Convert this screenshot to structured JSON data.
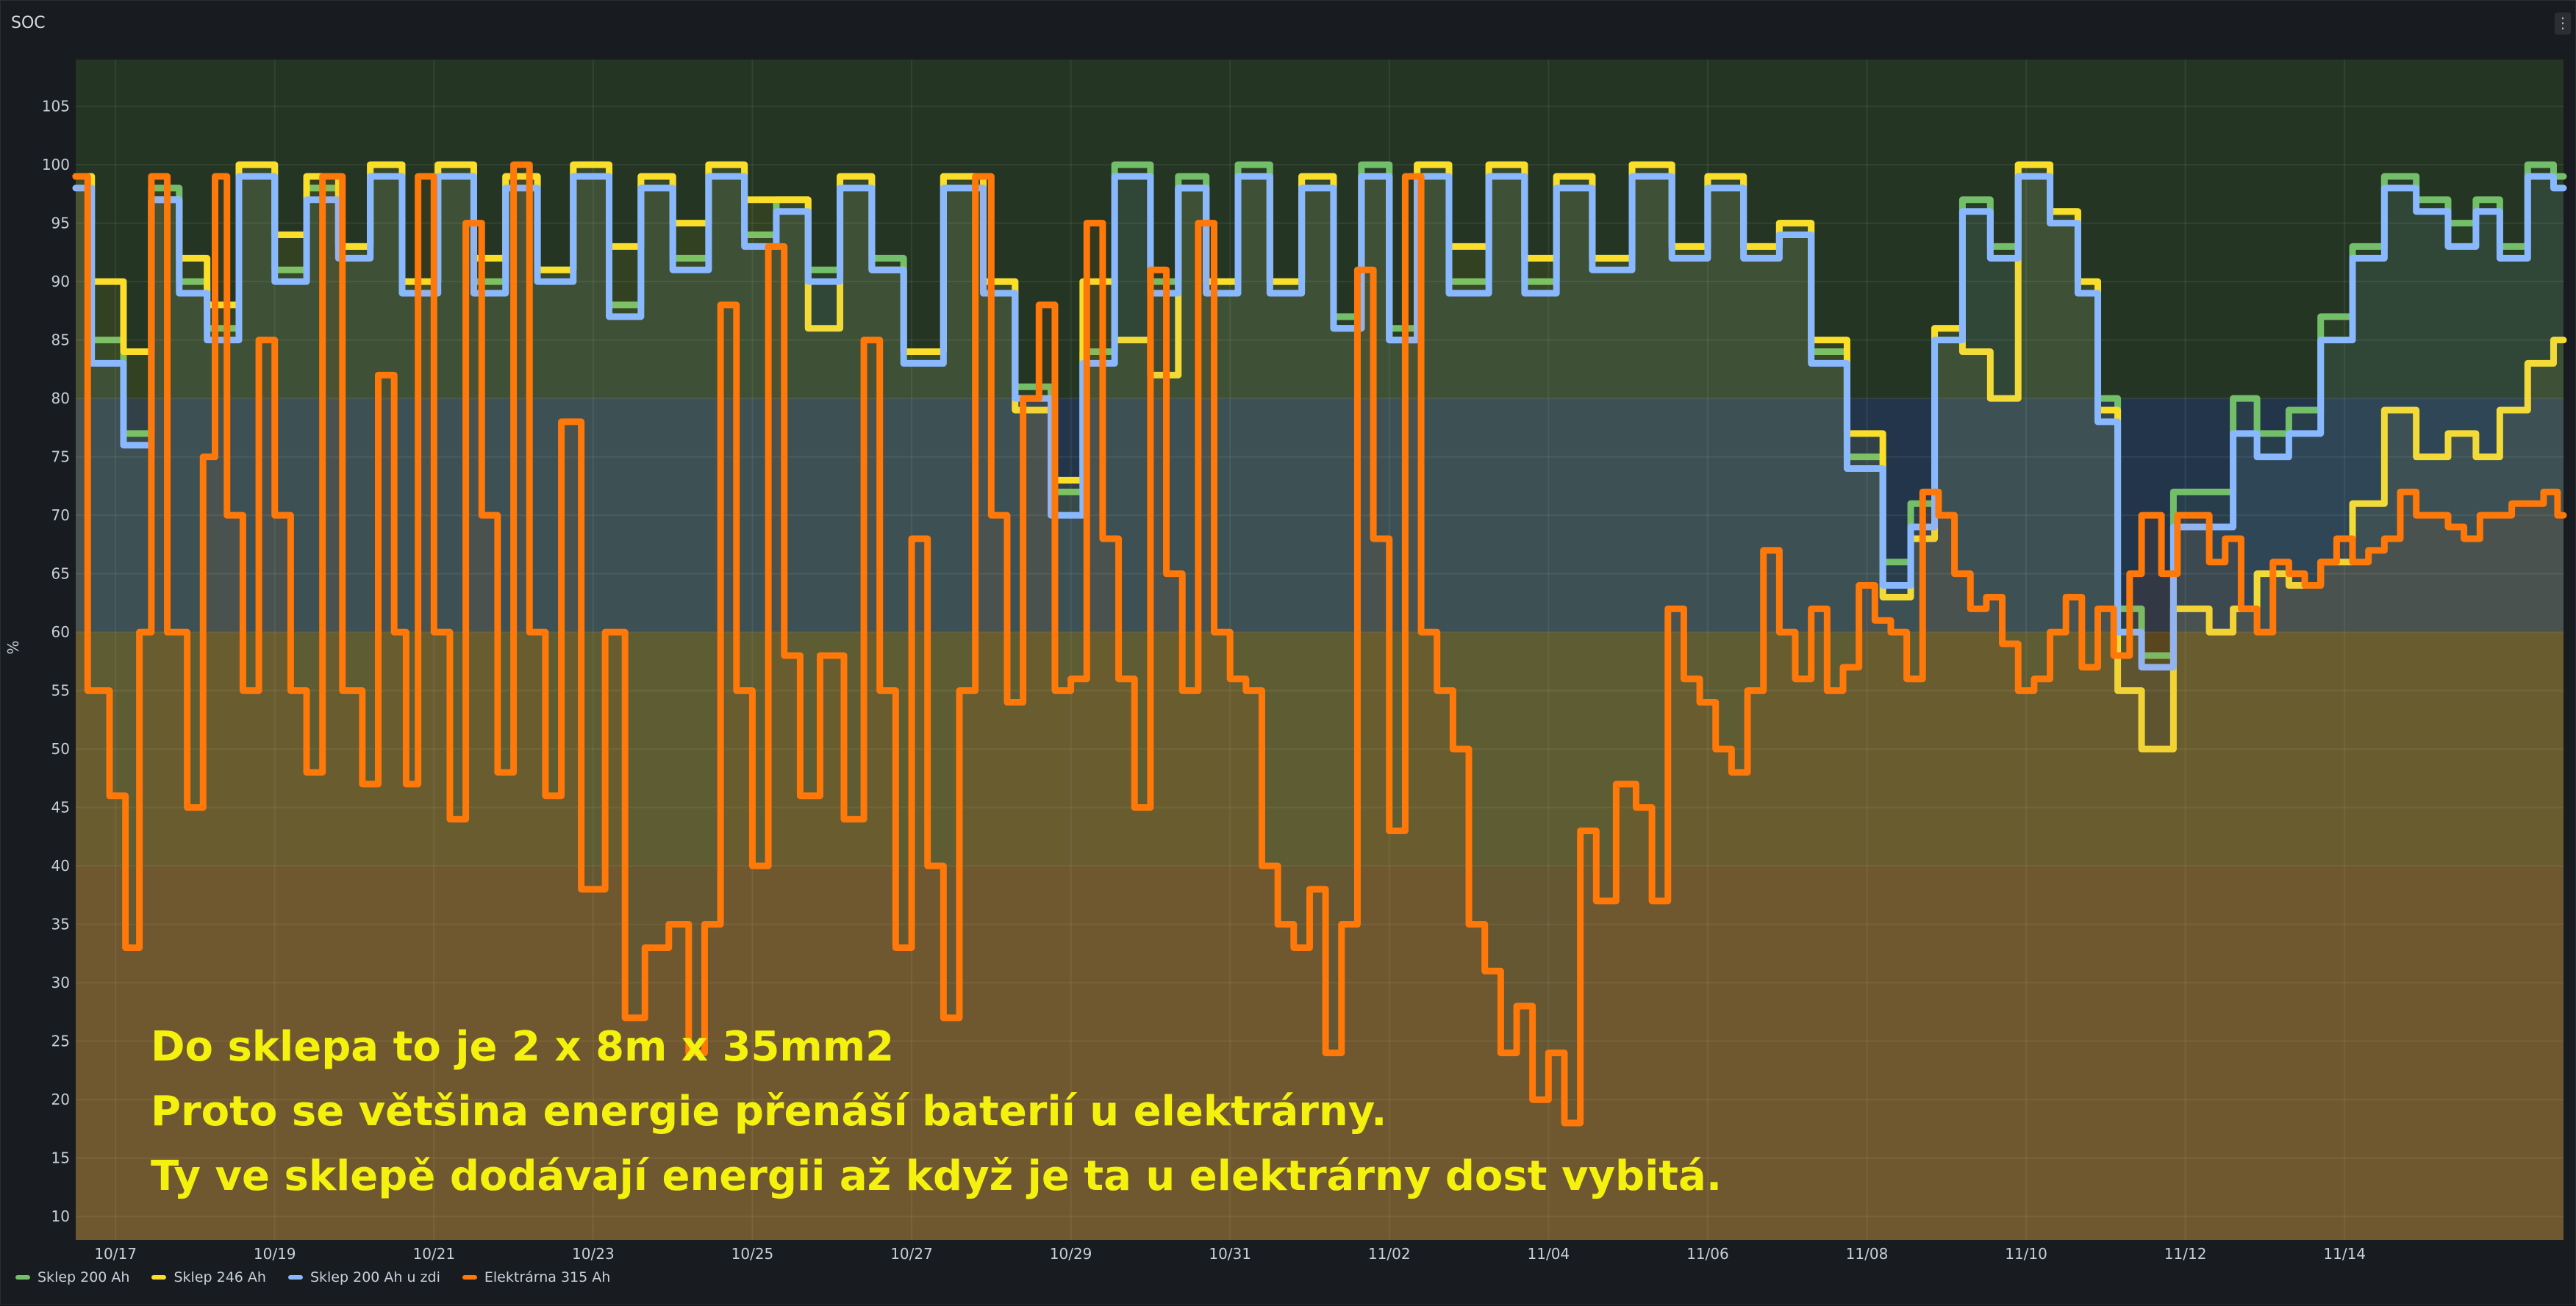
{
  "panel": {
    "title": "SOC",
    "menu_icon": "kebab-menu-icon"
  },
  "chart_data": {
    "type": "line",
    "title": "SOC",
    "xlabel": "",
    "ylabel": "%",
    "ylim": [
      8,
      109
    ],
    "xlim": [
      "10/16 12:00",
      "11/15 18:00"
    ],
    "yticks": [
      10,
      15,
      20,
      25,
      30,
      35,
      40,
      45,
      50,
      55,
      60,
      65,
      70,
      75,
      80,
      85,
      90,
      95,
      100,
      105
    ],
    "xticks": [
      "10/17",
      "10/19",
      "10/21",
      "10/23",
      "10/25",
      "10/27",
      "10/29",
      "10/31",
      "11/02",
      "11/04",
      "11/06",
      "11/08",
      "11/10",
      "11/12",
      "11/14"
    ],
    "grid": true,
    "legend_position": "bottom-left",
    "threshold_bands": [
      {
        "from": 8,
        "to": 40,
        "color": "#8a5a1f"
      },
      {
        "from": 40,
        "to": 60,
        "color": "#7a6520"
      },
      {
        "from": 60,
        "to": 80,
        "color": "#2d4a6e"
      },
      {
        "from": 80,
        "to": 109,
        "color": "#2f4a27"
      }
    ],
    "series": [
      {
        "name": "Sklep 200 Ah",
        "color": "#73bf69",
        "x": [
          0,
          0.4,
          0.8,
          1.1,
          1.5,
          1.8,
          2.3,
          2.7,
          3.1,
          3.5,
          3.9,
          4.3,
          4.8,
          5.2,
          5.6,
          6.0,
          6.5,
          6.9,
          7.3,
          7.7,
          8.2,
          8.6,
          9.0,
          9.4,
          9.8,
          10.2,
          10.6,
          11.2,
          11.6,
          12.0,
          12.5,
          12.8,
          13.3,
          13.7,
          14.0,
          14.4,
          14.8,
          15.2,
          15.6,
          16.0,
          16.3,
          16.7,
          17.0,
          17.5,
          18.0,
          18.4,
          18.8,
          19.3,
          19.8,
          20.3,
          20.7,
          21.2,
          21.6,
          22.0,
          22.5,
          22.9,
          23.2,
          23.5,
          23.9,
          24.2,
          24.6,
          25.0,
          25.3,
          25.5,
          25.8,
          26.1,
          26.6,
          27.0,
          27.2,
          27.6,
          28.0,
          28.4,
          28.8,
          29.2,
          29.6,
          30.0,
          30.3,
          30.6,
          31.0,
          31.25
        ],
        "y": [
          99,
          85,
          77,
          98,
          90,
          86,
          100,
          91,
          98,
          93,
          100,
          90,
          100,
          90,
          99,
          91,
          100,
          88,
          99,
          92,
          100,
          94,
          97,
          91,
          99,
          92,
          84,
          99,
          90,
          81,
          72,
          84,
          100,
          90,
          99,
          90,
          100,
          90,
          99,
          87,
          100,
          86,
          100,
          90,
          100,
          90,
          99,
          92,
          100,
          93,
          99,
          93,
          95,
          84,
          75,
          66,
          71,
          86,
          97,
          93,
          100,
          96,
          90,
          80,
          62,
          58,
          72,
          72,
          80,
          77,
          79,
          87,
          93,
          99,
          97,
          95,
          97,
          93,
          100,
          99
        ]
      },
      {
        "name": "Sklep 246 Ah",
        "color": "#fade2a",
        "x": [
          0,
          0.4,
          0.8,
          1.1,
          1.5,
          1.8,
          2.3,
          2.7,
          3.1,
          3.5,
          3.9,
          4.3,
          4.8,
          5.2,
          5.6,
          6.0,
          6.5,
          6.9,
          7.3,
          7.7,
          8.2,
          8.6,
          9.0,
          9.4,
          9.8,
          10.2,
          10.6,
          11.2,
          11.6,
          12.0,
          12.5,
          12.8,
          13.3,
          13.7,
          14.0,
          14.4,
          14.8,
          15.2,
          15.6,
          16.0,
          16.3,
          16.7,
          17.0,
          17.5,
          18.0,
          18.4,
          18.8,
          19.3,
          19.8,
          20.3,
          20.7,
          21.2,
          21.6,
          22.0,
          22.5,
          22.9,
          23.2,
          23.5,
          23.9,
          24.2,
          24.6,
          25.0,
          25.3,
          25.5,
          25.8,
          26.1,
          26.6,
          27.0,
          27.2,
          27.6,
          28.0,
          28.4,
          28.8,
          29.2,
          29.6,
          30.0,
          30.3,
          30.6,
          31.0,
          31.25
        ],
        "y": [
          99,
          90,
          84,
          97,
          92,
          88,
          100,
          94,
          99,
          93,
          100,
          90,
          100,
          92,
          99,
          91,
          100,
          93,
          99,
          95,
          100,
          97,
          97,
          86,
          99,
          91,
          84,
          99,
          90,
          79,
          73,
          90,
          85,
          82,
          98,
          90,
          99,
          90,
          99,
          86,
          99,
          85,
          100,
          93,
          100,
          92,
          99,
          92,
          100,
          93,
          99,
          93,
          95,
          85,
          77,
          63,
          68,
          86,
          84,
          80,
          100,
          96,
          90,
          79,
          55,
          50,
          62,
          60,
          62,
          65,
          64,
          66,
          71,
          79,
          75,
          77,
          75,
          79,
          83,
          85
        ]
      },
      {
        "name": "Sklep 200 Ah u zdi",
        "color": "#8ab8ff",
        "x": [
          0,
          0.4,
          0.8,
          1.1,
          1.5,
          1.8,
          2.3,
          2.7,
          3.1,
          3.5,
          3.9,
          4.3,
          4.8,
          5.2,
          5.6,
          6.0,
          6.5,
          6.9,
          7.3,
          7.7,
          8.2,
          8.6,
          9.0,
          9.4,
          9.8,
          10.2,
          10.6,
          11.2,
          11.6,
          12.0,
          12.5,
          12.8,
          13.3,
          13.7,
          14.0,
          14.4,
          14.8,
          15.2,
          15.6,
          16.0,
          16.3,
          16.7,
          17.0,
          17.5,
          18.0,
          18.4,
          18.8,
          19.3,
          19.8,
          20.3,
          20.7,
          21.2,
          21.6,
          22.0,
          22.5,
          22.9,
          23.2,
          23.5,
          23.9,
          24.2,
          24.6,
          25.0,
          25.3,
          25.5,
          25.8,
          26.1,
          26.6,
          27.0,
          27.2,
          27.6,
          28.0,
          28.4,
          28.8,
          29.2,
          29.6,
          30.0,
          30.3,
          30.6,
          31.0,
          31.25
        ],
        "y": [
          98,
          83,
          76,
          97,
          89,
          85,
          99,
          90,
          97,
          92,
          99,
          89,
          99,
          89,
          98,
          90,
          99,
          87,
          98,
          91,
          99,
          93,
          96,
          90,
          98,
          91,
          83,
          98,
          89,
          80,
          70,
          83,
          99,
          89,
          98,
          89,
          99,
          89,
          98,
          86,
          99,
          85,
          99,
          89,
          99,
          89,
          98,
          91,
          99,
          92,
          98,
          92,
          94,
          83,
          74,
          64,
          69,
          85,
          96,
          92,
          99,
          95,
          89,
          78,
          60,
          57,
          69,
          69,
          77,
          75,
          77,
          85,
          92,
          98,
          96,
          93,
          96,
          92,
          99,
          98
        ]
      },
      {
        "name": "Elektrárna 315 Ah",
        "color": "#ff780a",
        "x": [
          0,
          0.3,
          0.55,
          0.7,
          0.9,
          1.0,
          1.3,
          1.5,
          1.7,
          1.8,
          2.0,
          2.2,
          2.4,
          2.6,
          2.8,
          3.0,
          3.2,
          3.5,
          3.7,
          3.9,
          4.1,
          4.2,
          4.4,
          4.6,
          4.8,
          5.0,
          5.2,
          5.4,
          5.6,
          5.8,
          6.0,
          6.2,
          6.5,
          6.8,
          7.0,
          7.3,
          7.6,
          7.8,
          8.0,
          8.2,
          8.4,
          8.6,
          8.8,
          9.0,
          9.2,
          9.5,
          9.8,
          10.0,
          10.2,
          10.4,
          10.6,
          10.8,
          11.0,
          11.2,
          11.4,
          11.6,
          11.8,
          12.0,
          12.2,
          12.4,
          12.6,
          12.8,
          13.0,
          13.2,
          13.4,
          13.6,
          13.8,
          14.0,
          14.2,
          14.4,
          14.6,
          14.8,
          15.0,
          15.2,
          15.4,
          15.6,
          15.8,
          16.0,
          16.2,
          16.4,
          16.6,
          16.8,
          17.0,
          17.2,
          17.4,
          17.6,
          17.8,
          18.0,
          18.2,
          18.4,
          18.6,
          18.8,
          19.0,
          19.2,
          19.5,
          19.7,
          19.9,
          20.1,
          20.3,
          20.5,
          20.7,
          20.9,
          21.1,
          21.3,
          21.5,
          21.7,
          21.9,
          22.1,
          22.3,
          22.5,
          22.7,
          22.9,
          23.1,
          23.3,
          23.5,
          23.7,
          23.9,
          24.1,
          24.3,
          24.5,
          24.7,
          24.9,
          25.1,
          25.3,
          25.5,
          25.7,
          25.9,
          26.0,
          26.1,
          26.3,
          26.5,
          26.7,
          26.9,
          27.1,
          27.3,
          27.5,
          27.7,
          27.9,
          28.1,
          28.3,
          28.5,
          28.7,
          28.9,
          29.1,
          29.3,
          29.5,
          29.7,
          29.9,
          30.1,
          30.3,
          30.5,
          30.7,
          30.9,
          31.1,
          31.25
        ],
        "y": [
          99,
          55,
          46,
          33,
          60,
          99,
          60,
          45,
          75,
          99,
          70,
          55,
          85,
          70,
          55,
          48,
          99,
          55,
          47,
          82,
          60,
          47,
          99,
          60,
          44,
          95,
          70,
          48,
          100,
          60,
          46,
          78,
          38,
          60,
          27,
          33,
          35,
          24,
          35,
          88,
          55,
          40,
          93,
          58,
          46,
          58,
          44,
          85,
          55,
          33,
          68,
          40,
          27,
          55,
          99,
          70,
          54,
          80,
          88,
          55,
          56,
          95,
          68,
          56,
          45,
          91,
          65,
          55,
          95,
          60,
          56,
          55,
          40,
          35,
          33,
          38,
          24,
          35,
          91,
          68,
          43,
          99,
          60,
          55,
          50,
          35,
          31,
          24,
          28,
          20,
          24,
          18,
          43,
          37,
          47,
          45,
          37,
          62,
          56,
          54,
          50,
          48,
          55,
          67,
          60,
          56,
          62,
          55,
          57,
          64,
          61,
          60,
          56,
          72,
          70,
          65,
          62,
          63,
          59,
          55,
          56,
          60,
          63,
          57,
          62,
          58,
          65,
          70,
          70,
          65,
          70,
          70,
          66,
          68,
          62,
          60,
          66,
          65,
          64,
          66,
          68,
          66,
          67,
          68,
          72,
          70,
          70,
          69,
          68,
          70,
          70,
          71,
          71,
          72,
          70
        ]
      }
    ],
    "annotations": [
      "Do sklepa to je 2 x 8m x 35mm2",
      "Proto se většina energie přenáší baterií u elektrárny.",
      "Ty ve sklepě dodávají energii až když je ta u elektrárny dost vybitá."
    ]
  }
}
